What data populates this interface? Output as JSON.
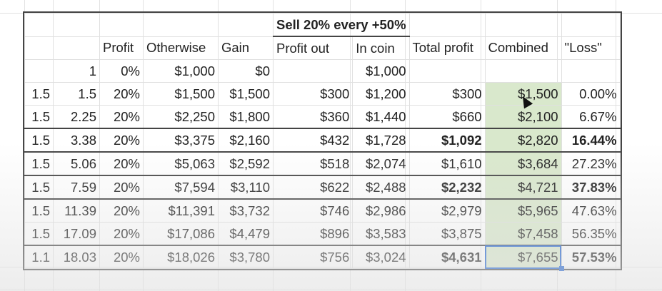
{
  "header_group": "Sell 20% every +50%",
  "columns": [
    "",
    "",
    "Profit",
    "Otherwise",
    "Gain",
    "Profit out",
    "In coin",
    "Total profit",
    "Combined",
    "\"Loss\""
  ],
  "rows": [
    {
      "cells": [
        "",
        "1",
        "0%",
        "$1,000",
        "$0",
        "",
        "$1,000",
        "",
        "",
        ""
      ],
      "bold": []
    },
    {
      "cells": [
        "1.5",
        "1.5",
        "20%",
        "$1,500",
        "$1,500",
        "$300",
        "$1,200",
        "$300",
        "$1,500",
        "0.00%"
      ],
      "bold": []
    },
    {
      "cells": [
        "1.5",
        "2.25",
        "20%",
        "$2,250",
        "$1,800",
        "$360",
        "$1,440",
        "$660",
        "$2,100",
        "6.67%"
      ],
      "bold": []
    },
    {
      "cells": [
        "1.5",
        "3.38",
        "20%",
        "$3,375",
        "$2,160",
        "$432",
        "$1,728",
        "$1,092",
        "$2,820",
        "16.44%"
      ],
      "bold": [
        7,
        9
      ]
    },
    {
      "cells": [
        "1.5",
        "5.06",
        "20%",
        "$5,063",
        "$2,592",
        "$518",
        "$2,074",
        "$1,610",
        "$3,684",
        "27.23%"
      ],
      "bold": []
    },
    {
      "cells": [
        "1.5",
        "7.59",
        "20%",
        "$7,594",
        "$3,110",
        "$622",
        "$2,488",
        "$2,232",
        "$4,721",
        "37.83%"
      ],
      "bold": [
        7,
        9
      ]
    },
    {
      "cells": [
        "1.5",
        "11.39",
        "20%",
        "$11,391",
        "$3,732",
        "$746",
        "$2,986",
        "$2,979",
        "$5,965",
        "47.63%"
      ],
      "bold": []
    },
    {
      "cells": [
        "1.5",
        "17.09",
        "20%",
        "$17,086",
        "$4,479",
        "$896",
        "$3,583",
        "$3,875",
        "$7,458",
        "56.35%"
      ],
      "bold": []
    },
    {
      "cells": [
        "1.1",
        "18.03",
        "20%",
        "$18,026",
        "$3,780",
        "$756",
        "$3,024",
        "$4,631",
        "$7,655",
        "57.53%"
      ],
      "bold": [
        7,
        9
      ]
    }
  ],
  "highlight_color": "#d9e8cc",
  "selection_color": "#1a5fd0",
  "selected_cell": "$7,655"
}
